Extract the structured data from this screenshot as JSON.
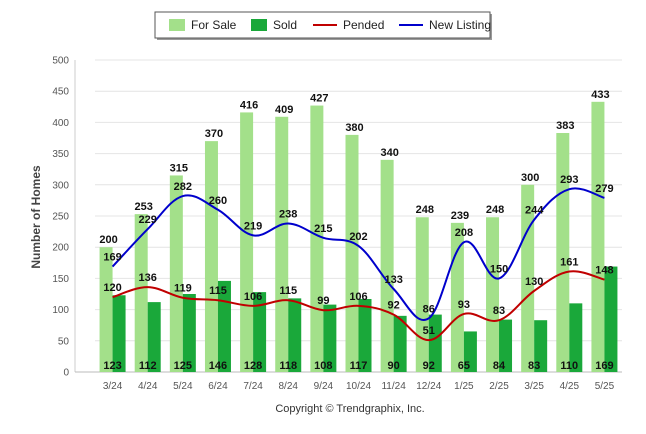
{
  "chart_data": {
    "type": "bar",
    "title": "",
    "xlabel": "",
    "ylabel": "Number of Homes",
    "ylim": [
      0,
      500
    ],
    "yticks": [
      0,
      50,
      100,
      150,
      200,
      250,
      300,
      350,
      400,
      450,
      500
    ],
    "grid": true,
    "legend_position": "top-center",
    "categories": [
      "3/24",
      "4/24",
      "5/24",
      "6/24",
      "7/24",
      "8/24",
      "9/24",
      "10/24",
      "11/24",
      "12/24",
      "1/25",
      "2/25",
      "3/25",
      "4/25",
      "5/25"
    ],
    "series": [
      {
        "name": "For Sale",
        "type": "bar",
        "color": "#a3e08a",
        "values": [
          200,
          253,
          315,
          370,
          416,
          409,
          427,
          380,
          340,
          248,
          239,
          248,
          300,
          383,
          433
        ]
      },
      {
        "name": "Sold",
        "type": "bar",
        "color": "#1aa83a",
        "values": [
          123,
          112,
          125,
          146,
          128,
          118,
          108,
          117,
          90,
          92,
          65,
          84,
          83,
          110,
          169
        ]
      },
      {
        "name": "Pended",
        "type": "line",
        "color": "#c00000",
        "values": [
          120,
          136,
          119,
          115,
          106,
          115,
          99,
          106,
          92,
          51,
          93,
          83,
          130,
          161,
          148
        ]
      },
      {
        "name": "New Listing",
        "type": "line",
        "color": "#0000cc",
        "values": [
          169,
          229,
          282,
          260,
          219,
          238,
          215,
          202,
          133,
          86,
          208,
          150,
          244,
          293,
          279
        ]
      }
    ]
  },
  "copyright": "Copyright © Trendgraphix, Inc."
}
